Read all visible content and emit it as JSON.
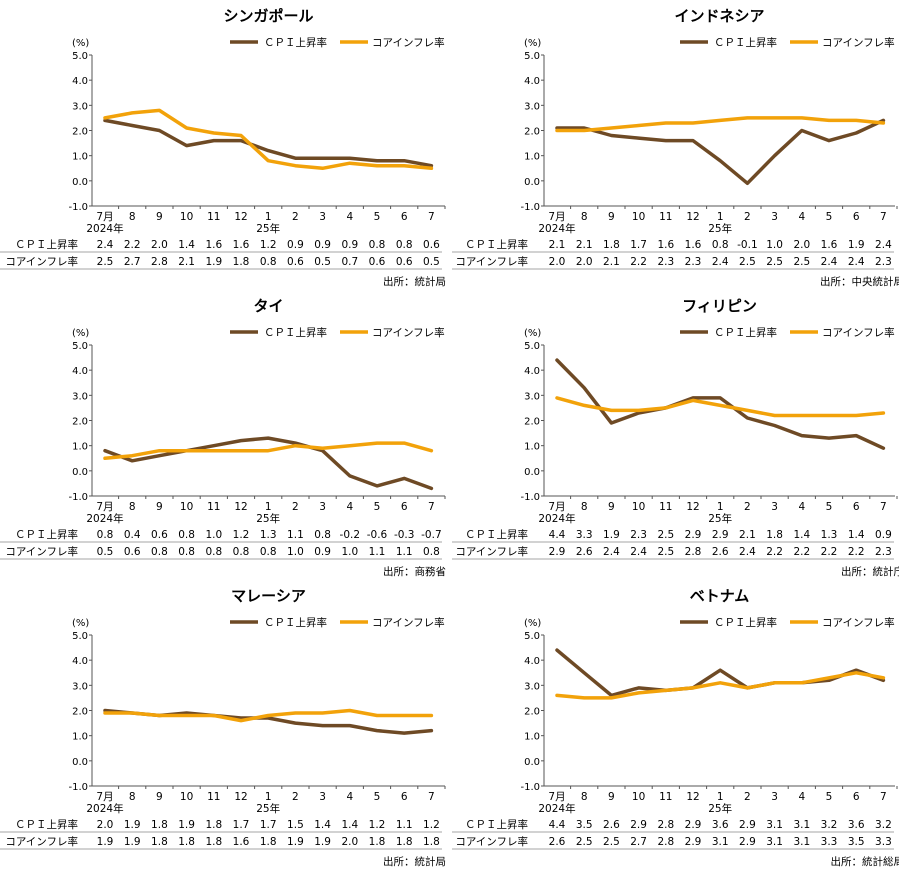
{
  "legend": {
    "cpi": "ＣＰＩ上昇率",
    "core": "コアインフレ率"
  },
  "colors": {
    "cpi": "#6e4a25",
    "core": "#f2a20a"
  },
  "chart_data": [
    {
      "type": "line",
      "title": "シンガポール",
      "unit": "(%)",
      "x": [
        "7月",
        "8",
        "9",
        "10",
        "11",
        "12",
        "1",
        "2",
        "3",
        "4",
        "5",
        "6",
        "7"
      ],
      "x_sub": {
        "7月": "2024年",
        "1": "25年"
      },
      "ylim": [
        -1.0,
        5.0
      ],
      "yticks": [
        "5.0",
        "4.0",
        "3.0",
        "2.0",
        "1.0",
        "0.0",
        "-1.0"
      ],
      "series": [
        {
          "name": "ＣＰＩ上昇率",
          "values": [
            2.4,
            2.2,
            2.0,
            1.4,
            1.6,
            1.6,
            1.2,
            0.9,
            0.9,
            0.9,
            0.8,
            0.8,
            0.6
          ]
        },
        {
          "name": "コアインフレ率",
          "values": [
            2.5,
            2.7,
            2.8,
            2.1,
            1.9,
            1.8,
            0.8,
            0.6,
            0.5,
            0.7,
            0.6,
            0.6,
            0.5
          ]
        }
      ],
      "source": "出所：統計局"
    },
    {
      "type": "line",
      "title": "インドネシア",
      "unit": "(%)",
      "x": [
        "7月",
        "8",
        "9",
        "10",
        "11",
        "12",
        "1",
        "2",
        "3",
        "4",
        "5",
        "6",
        "7"
      ],
      "x_sub": {
        "7月": "2024年",
        "1": "25年"
      },
      "ylim": [
        -1.0,
        5.0
      ],
      "yticks": [
        "5.0",
        "4.0",
        "3.0",
        "2.0",
        "1.0",
        "0.0",
        "-1.0"
      ],
      "series": [
        {
          "name": "ＣＰＩ上昇率",
          "values": [
            2.1,
            2.1,
            1.8,
            1.7,
            1.6,
            1.6,
            0.8,
            -0.1,
            1.0,
            2.0,
            1.6,
            1.9,
            2.4
          ]
        },
        {
          "name": "コアインフレ率",
          "values": [
            2.0,
            2.0,
            2.1,
            2.2,
            2.3,
            2.3,
            2.4,
            2.5,
            2.5,
            2.5,
            2.4,
            2.4,
            2.3
          ]
        }
      ],
      "source": "出所：中央統計局"
    },
    {
      "type": "line",
      "title": "タイ",
      "unit": "(%)",
      "x": [
        "7月",
        "8",
        "9",
        "10",
        "11",
        "12",
        "1",
        "2",
        "3",
        "4",
        "5",
        "6",
        "7"
      ],
      "x_sub": {
        "7月": "2024年",
        "1": "25年"
      },
      "ylim": [
        -1.0,
        5.0
      ],
      "yticks": [
        "5.0",
        "4.0",
        "3.0",
        "2.0",
        "1.0",
        "0.0",
        "-1.0"
      ],
      "series": [
        {
          "name": "ＣＰＩ上昇率",
          "values": [
            0.8,
            0.4,
            0.6,
            0.8,
            1.0,
            1.2,
            1.3,
            1.1,
            0.8,
            -0.2,
            -0.6,
            -0.3,
            -0.7
          ]
        },
        {
          "name": "コアインフレ率",
          "values": [
            0.5,
            0.6,
            0.8,
            0.8,
            0.8,
            0.8,
            0.8,
            1.0,
            0.9,
            1.0,
            1.1,
            1.1,
            0.8
          ]
        }
      ],
      "source": "出所：商務省"
    },
    {
      "type": "line",
      "title": "フィリピン",
      "unit": "(%)",
      "x": [
        "7月",
        "8",
        "9",
        "10",
        "11",
        "12",
        "1",
        "2",
        "3",
        "4",
        "5",
        "6",
        "7"
      ],
      "x_sub": {
        "7月": "2024年",
        "1": "25年"
      },
      "ylim": [
        -1.0,
        5.0
      ],
      "yticks": [
        "5.0",
        "4.0",
        "3.0",
        "2.0",
        "1.0",
        "0.0",
        "-1.0"
      ],
      "series": [
        {
          "name": "ＣＰＩ上昇率",
          "values": [
            4.4,
            3.3,
            1.9,
            2.3,
            2.5,
            2.9,
            2.9,
            2.1,
            1.8,
            1.4,
            1.3,
            1.4,
            0.9
          ]
        },
        {
          "name": "コアインフレ率",
          "values": [
            2.9,
            2.6,
            2.4,
            2.4,
            2.5,
            2.8,
            2.6,
            2.4,
            2.2,
            2.2,
            2.2,
            2.2,
            2.3
          ]
        }
      ],
      "source": "出所：統計庁"
    },
    {
      "type": "line",
      "title": "マレーシア",
      "unit": "(%)",
      "x": [
        "7月",
        "8",
        "9",
        "10",
        "11",
        "12",
        "1",
        "2",
        "3",
        "4",
        "5",
        "6",
        "7"
      ],
      "x_sub": {
        "7月": "2024年",
        "1": "25年"
      },
      "ylim": [
        -1.0,
        5.0
      ],
      "yticks": [
        "5.0",
        "4.0",
        "3.0",
        "2.0",
        "1.0",
        "0.0",
        "-1.0"
      ],
      "series": [
        {
          "name": "ＣＰＩ上昇率",
          "values": [
            2.0,
            1.9,
            1.8,
            1.9,
            1.8,
            1.7,
            1.7,
            1.5,
            1.4,
            1.4,
            1.2,
            1.1,
            1.2
          ]
        },
        {
          "name": "コアインフレ率",
          "values": [
            1.9,
            1.9,
            1.8,
            1.8,
            1.8,
            1.6,
            1.8,
            1.9,
            1.9,
            2.0,
            1.8,
            1.8,
            1.8
          ]
        }
      ],
      "source": "出所：統計局"
    },
    {
      "type": "line",
      "title": "ベトナム",
      "unit": "(%)",
      "x": [
        "7月",
        "8",
        "9",
        "10",
        "11",
        "12",
        "1",
        "2",
        "3",
        "4",
        "5",
        "6",
        "7"
      ],
      "x_sub": {
        "7月": "2024年",
        "1": "25年"
      },
      "ylim": [
        -1.0,
        5.0
      ],
      "yticks": [
        "5.0",
        "4.0",
        "3.0",
        "2.0",
        "1.0",
        "0.0",
        "-1.0"
      ],
      "series": [
        {
          "name": "ＣＰＩ上昇率",
          "values": [
            4.4,
            3.5,
            2.6,
            2.9,
            2.8,
            2.9,
            3.6,
            2.9,
            3.1,
            3.1,
            3.2,
            3.6,
            3.2
          ]
        },
        {
          "name": "コアインフレ率",
          "values": [
            2.6,
            2.5,
            2.5,
            2.7,
            2.8,
            2.9,
            3.1,
            2.9,
            3.1,
            3.1,
            3.3,
            3.5,
            3.3
          ]
        }
      ],
      "source": "出所：統計総局"
    }
  ]
}
